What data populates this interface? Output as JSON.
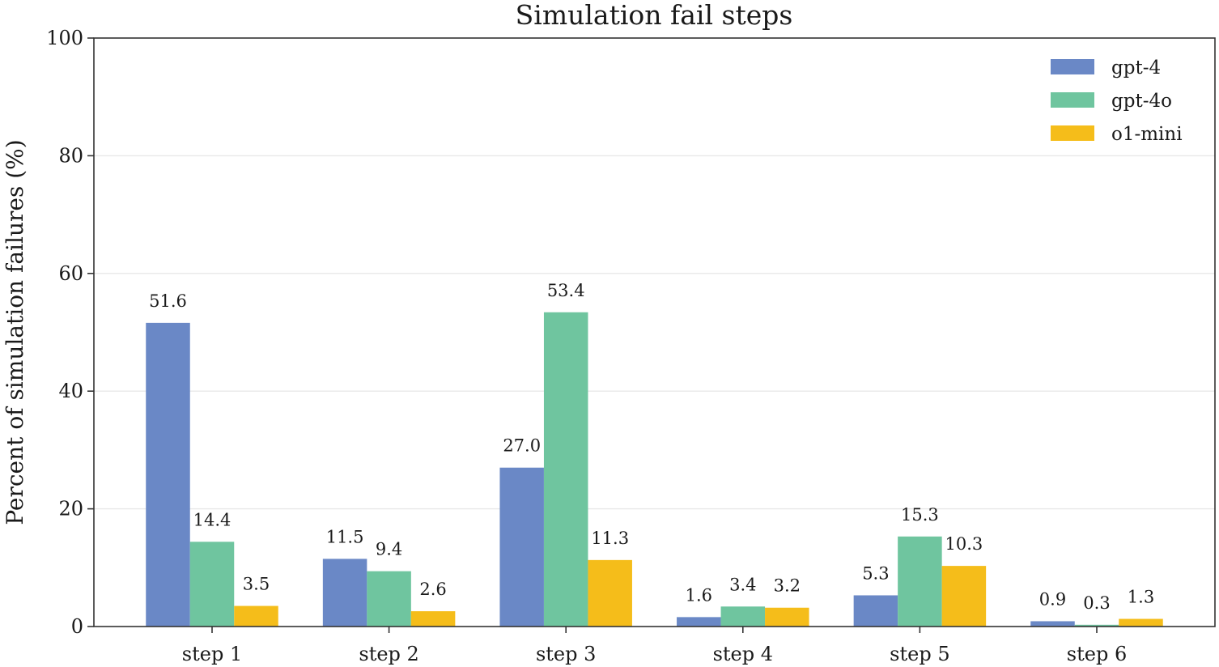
{
  "chart_data": {
    "type": "bar",
    "title": "Simulation fail steps",
    "xlabel": "",
    "ylabel": "Percent of simulation failures (%)",
    "ylim": [
      0,
      100
    ],
    "yticks": [
      "0",
      "20",
      "40",
      "60",
      "80",
      "100"
    ],
    "grid": "y",
    "legend_position": "top-right",
    "categories": [
      "step 1",
      "step 2",
      "step 3",
      "step 4",
      "step 5",
      "step 6"
    ],
    "series": [
      {
        "name": "gpt-4",
        "color": "#6a88c6",
        "values": [
          51.6,
          11.5,
          27.0,
          1.6,
          5.3,
          0.9
        ],
        "labels": [
          "51.6",
          "11.5",
          "27.0",
          "1.6",
          "5.3",
          "0.9"
        ]
      },
      {
        "name": "gpt-4o",
        "color": "#6fc59f",
        "values": [
          14.4,
          9.4,
          53.4,
          3.4,
          15.3,
          0.3
        ],
        "labels": [
          "14.4",
          "9.4",
          "53.4",
          "3.4",
          "15.3",
          "0.3"
        ]
      },
      {
        "name": "o1-mini",
        "color": "#f5bd1a",
        "values": [
          3.5,
          2.6,
          11.3,
          3.2,
          10.3,
          1.3
        ],
        "labels": [
          "3.5",
          "2.6",
          "11.3",
          "3.2",
          "10.3",
          "1.3"
        ]
      }
    ]
  }
}
